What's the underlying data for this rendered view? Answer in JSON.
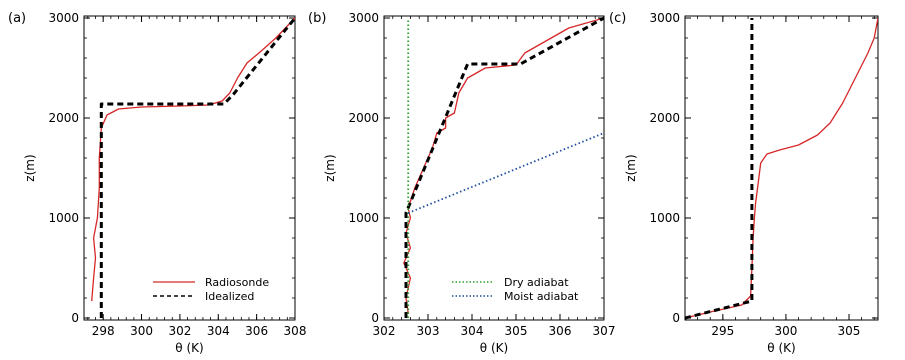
{
  "chart_data": [
    {
      "type": "line",
      "panel_label": "(a)",
      "xlabel": "θ (K)",
      "ylabel": "z(m)",
      "xlim": [
        297,
        308
      ],
      "ylim": [
        -20,
        3020
      ],
      "xticks": [
        298,
        300,
        302,
        304,
        306,
        308
      ],
      "xtick_labels": [
        "298",
        "300",
        "302",
        "304",
        "306",
        "308"
      ],
      "yticks": [
        0,
        1000,
        2000,
        3000
      ],
      "ytick_labels": [
        "0",
        "1000",
        "2000",
        "3000"
      ],
      "legend": {
        "position": "bottom-right",
        "entries": [
          "Radiosonde",
          "Idealized"
        ]
      },
      "series": [
        {
          "name": "Radiosonde",
          "color": "#d62728",
          "style": "solid",
          "x": [
            297.4,
            297.5,
            297.6,
            297.5,
            297.7,
            297.8,
            297.8,
            297.9,
            298.2,
            298.8,
            300.0,
            302.0,
            303.5,
            304.2,
            304.6,
            305.0,
            305.5,
            306.3,
            307.0,
            308.0
          ],
          "y": [
            170,
            400,
            600,
            800,
            1000,
            1300,
            1600,
            1900,
            2030,
            2090,
            2110,
            2120,
            2130,
            2170,
            2250,
            2400,
            2550,
            2680,
            2800,
            3000
          ]
        },
        {
          "name": "Idealized",
          "color": "#000000",
          "style": "dashed",
          "x": [
            297.9,
            297.9,
            304.3,
            304.8,
            308.0
          ],
          "y": [
            0,
            2140,
            2140,
            2240,
            3000
          ]
        }
      ]
    },
    {
      "type": "line",
      "panel_label": "(b)",
      "xlabel": "θ (K)",
      "ylabel": "z(m)",
      "xlim": [
        302,
        307
      ],
      "ylim": [
        -20,
        3020
      ],
      "xticks": [
        302,
        303,
        304,
        305,
        306,
        307
      ],
      "xtick_labels": [
        "302",
        "303",
        "304",
        "305",
        "306",
        "307"
      ],
      "yticks": [
        0,
        1000,
        2000,
        3000
      ],
      "ytick_labels": [
        "0",
        "1000",
        "2000",
        "3000"
      ],
      "legend": {
        "position": "bottom-right",
        "entries": [
          "Dry adiabat",
          "Moist adiabat"
        ]
      },
      "series": [
        {
          "name": "Radiosonde",
          "color": "#d62728",
          "style": "solid",
          "x": [
            302.55,
            302.5,
            302.6,
            302.45,
            302.6,
            302.5,
            302.6,
            302.55,
            302.7,
            302.9,
            303.1,
            303.2,
            303.4,
            303.4,
            303.6,
            303.7,
            303.9,
            304.3,
            305.0,
            305.2,
            306.2,
            307.0
          ],
          "y": [
            50,
            200,
            400,
            550,
            700,
            850,
            1000,
            1100,
            1300,
            1500,
            1700,
            1850,
            1900,
            2000,
            2050,
            2250,
            2400,
            2500,
            2530,
            2650,
            2900,
            3000
          ]
        },
        {
          "name": "Idealized",
          "color": "#000000",
          "style": "dashed",
          "x": [
            302.5,
            302.5,
            303.9,
            305.1,
            307.0
          ],
          "y": [
            0,
            1050,
            2540,
            2540,
            3000
          ]
        },
        {
          "name": "Dry adiabat",
          "color": "#2ca02c",
          "style": "dotted",
          "x": [
            302.55,
            302.55
          ],
          "y": [
            0,
            3000
          ]
        },
        {
          "name": "Moist adiabat",
          "color": "#1f4e9c",
          "style": "dotted",
          "x": [
            302.55,
            307.0
          ],
          "y": [
            1050,
            1850
          ]
        }
      ]
    },
    {
      "type": "line",
      "panel_label": "(c)",
      "xlabel": "θ (K)",
      "ylabel": "z(m)",
      "xlim": [
        292,
        307.3
      ],
      "ylim": [
        -20,
        3020
      ],
      "xticks": [
        295,
        300,
        305
      ],
      "xtick_labels": [
        "295",
        "300",
        "305"
      ],
      "yticks": [
        0,
        1000,
        2000,
        3000
      ],
      "ytick_labels": [
        "0",
        "1000",
        "2000",
        "3000"
      ],
      "series": [
        {
          "name": "Radiosonde",
          "color": "#d62728",
          "style": "solid",
          "x": [
            292.0,
            294.0,
            296.5,
            297.2,
            297.3,
            297.4,
            297.5,
            297.6,
            297.8,
            298.0,
            298.5,
            299.5,
            301.0,
            302.5,
            303.5,
            304.5,
            305.5,
            306.5,
            307.0,
            307.3
          ],
          "y": [
            0,
            60,
            130,
            220,
            500,
            800,
            1000,
            1150,
            1350,
            1550,
            1640,
            1680,
            1730,
            1830,
            1950,
            2150,
            2400,
            2650,
            2800,
            3000
          ]
        },
        {
          "name": "Idealized",
          "color": "#000000",
          "style": "dashed",
          "x": [
            292.0,
            297.3,
            297.3
          ],
          "y": [
            0,
            170,
            3000
          ]
        }
      ]
    }
  ]
}
